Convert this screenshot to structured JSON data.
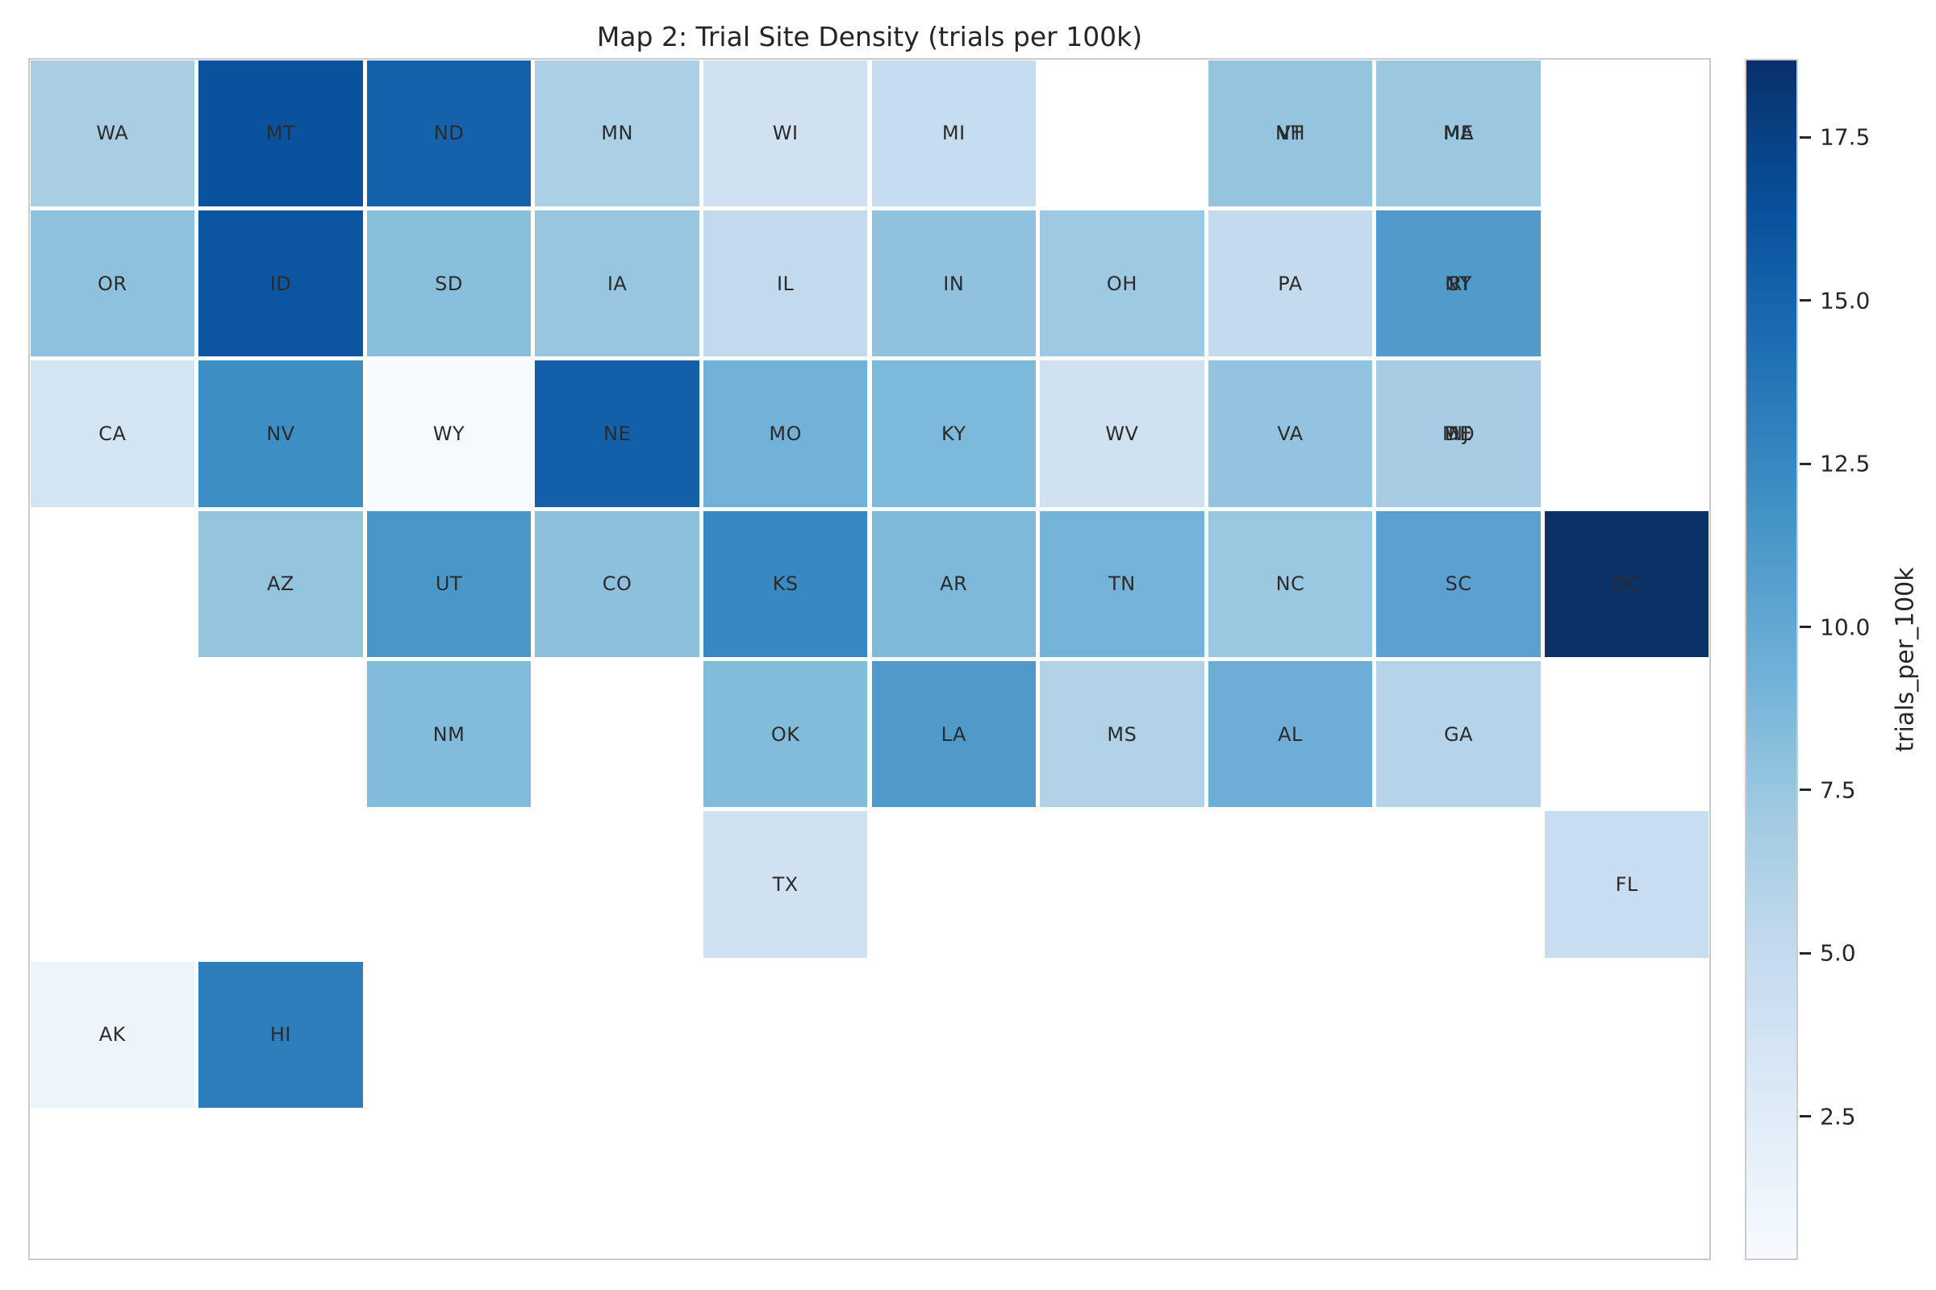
{
  "figure": {
    "background": "#ffffff",
    "text_color": "#262626",
    "axes_border_color": "#cbcbcb",
    "cell_label_color": "#2b2b2b"
  },
  "chart_data": {
    "type": "heatmap",
    "subtype": "us-state-tile-grid-map",
    "title": "Map 2: Trial Site Density (trials per 100k)",
    "value_field": "trials_per_100k",
    "grid": {
      "rows": 8,
      "cols": 10
    },
    "cells": [
      {
        "labels": [
          "WA"
        ],
        "row": 1,
        "col": 1,
        "value": 6.5,
        "color": "#a9cee4"
      },
      {
        "labels": [
          "MT"
        ],
        "row": 1,
        "col": 2,
        "value": 16.3,
        "color": "#0b529e"
      },
      {
        "labels": [
          "ND"
        ],
        "row": 1,
        "col": 3,
        "value": 15.5,
        "color": "#1561ab"
      },
      {
        "labels": [
          "MN"
        ],
        "row": 1,
        "col": 4,
        "value": 6.4,
        "color": "#abcfe5"
      },
      {
        "labels": [
          "WI"
        ],
        "row": 1,
        "col": 5,
        "value": 3.6,
        "color": "#d0e2f2"
      },
      {
        "labels": [
          "MI"
        ],
        "row": 1,
        "col": 6,
        "value": 4.5,
        "color": "#c6ddef"
      },
      {
        "labels": [
          "NH",
          "VT"
        ],
        "row": 1,
        "col": 8,
        "value": 7.9,
        "color": "#95c4df"
      },
      {
        "labels": [
          "ME",
          "MA"
        ],
        "row": 1,
        "col": 9,
        "value": 7.5,
        "color": "#9cc7e1"
      },
      {
        "labels": [
          "OR"
        ],
        "row": 2,
        "col": 1,
        "value": 8.2,
        "color": "#8dc1dd"
      },
      {
        "labels": [
          "ID"
        ],
        "row": 2,
        "col": 2,
        "value": 16.1,
        "color": "#0c55a2"
      },
      {
        "labels": [
          "SD"
        ],
        "row": 2,
        "col": 3,
        "value": 8.4,
        "color": "#89bedd"
      },
      {
        "labels": [
          "IA"
        ],
        "row": 2,
        "col": 4,
        "value": 7.7,
        "color": "#98c6e0"
      },
      {
        "labels": [
          "IL"
        ],
        "row": 2,
        "col": 5,
        "value": 4.9,
        "color": "#c2daee"
      },
      {
        "labels": [
          "IN"
        ],
        "row": 2,
        "col": 6,
        "value": 8.0,
        "color": "#90c2de"
      },
      {
        "labels": [
          "OH"
        ],
        "row": 2,
        "col": 7,
        "value": 7.3,
        "color": "#9dc9e2"
      },
      {
        "labels": [
          "PA"
        ],
        "row": 2,
        "col": 8,
        "value": 4.7,
        "color": "#c4dbee"
      },
      {
        "labels": [
          "NY",
          "RI",
          "CT"
        ],
        "row": 2,
        "col": 9,
        "value": 10.9,
        "color": "#519bcc"
      },
      {
        "labels": [
          "CA"
        ],
        "row": 3,
        "col": 1,
        "value": 3.4,
        "color": "#d3e4f3"
      },
      {
        "labels": [
          "NV"
        ],
        "row": 3,
        "col": 2,
        "value": 12.0,
        "color": "#3d8ec4"
      },
      {
        "labels": [
          "WY"
        ],
        "row": 3,
        "col": 3,
        "value": 0.4,
        "color": "#f6fafe"
      },
      {
        "labels": [
          "NE"
        ],
        "row": 3,
        "col": 4,
        "value": 15.4,
        "color": "#1460a8"
      },
      {
        "labels": [
          "MO"
        ],
        "row": 3,
        "col": 5,
        "value": 9.6,
        "color": "#72b2d8"
      },
      {
        "labels": [
          "KY"
        ],
        "row": 3,
        "col": 6,
        "value": 9.1,
        "color": "#7db9da"
      },
      {
        "labels": [
          "WV"
        ],
        "row": 3,
        "col": 7,
        "value": 3.6,
        "color": "#d0e1f2"
      },
      {
        "labels": [
          "VA"
        ],
        "row": 3,
        "col": 8,
        "value": 7.8,
        "color": "#93c3df"
      },
      {
        "labels": [
          "MD",
          "DE",
          "NJ"
        ],
        "row": 3,
        "col": 9,
        "value": 6.9,
        "color": "#a7cce3"
      },
      {
        "labels": [
          "AZ"
        ],
        "row": 4,
        "col": 2,
        "value": 7.9,
        "color": "#95c4df"
      },
      {
        "labels": [
          "UT"
        ],
        "row": 4,
        "col": 3,
        "value": 11.3,
        "color": "#4997c9"
      },
      {
        "labels": [
          "CO"
        ],
        "row": 4,
        "col": 4,
        "value": 8.2,
        "color": "#8cc0dd"
      },
      {
        "labels": [
          "KS"
        ],
        "row": 4,
        "col": 5,
        "value": 12.4,
        "color": "#3888c1"
      },
      {
        "labels": [
          "AR"
        ],
        "row": 4,
        "col": 6,
        "value": 8.9,
        "color": "#7eb9da"
      },
      {
        "labels": [
          "TN"
        ],
        "row": 4,
        "col": 7,
        "value": 9.5,
        "color": "#75b3d8"
      },
      {
        "labels": [
          "NC"
        ],
        "row": 4,
        "col": 8,
        "value": 7.5,
        "color": "#9bc8e1"
      },
      {
        "labels": [
          "SC"
        ],
        "row": 4,
        "col": 9,
        "value": 10.5,
        "color": "#5ba0d0"
      },
      {
        "labels": [
          "DC"
        ],
        "row": 4,
        "col": 10,
        "value": 18.6,
        "color": "#0a3168"
      },
      {
        "labels": [
          "NM"
        ],
        "row": 5,
        "col": 3,
        "value": 8.7,
        "color": "#82bcdb"
      },
      {
        "labels": [
          "OK"
        ],
        "row": 5,
        "col": 5,
        "value": 8.6,
        "color": "#83bcdb"
      },
      {
        "labels": [
          "LA"
        ],
        "row": 5,
        "col": 6,
        "value": 11.1,
        "color": "#4f99cb"
      },
      {
        "labels": [
          "MS"
        ],
        "row": 5,
        "col": 7,
        "value": 6.0,
        "color": "#b2d2e8"
      },
      {
        "labels": [
          "AL"
        ],
        "row": 5,
        "col": 8,
        "value": 10.0,
        "color": "#6eaed6"
      },
      {
        "labels": [
          "GA"
        ],
        "row": 5,
        "col": 9,
        "value": 5.8,
        "color": "#b5d4e9"
      },
      {
        "labels": [
          "TX"
        ],
        "row": 6,
        "col": 5,
        "value": 3.6,
        "color": "#d0e1f2"
      },
      {
        "labels": [
          "FL"
        ],
        "row": 6,
        "col": 10,
        "value": 4.4,
        "color": "#c9ddf0"
      },
      {
        "labels": [
          "AK"
        ],
        "row": 7,
        "col": 1,
        "value": 1.5,
        "color": "#edf4fb"
      },
      {
        "labels": [
          "HI"
        ],
        "row": 7,
        "col": 2,
        "value": 13.1,
        "color": "#2e7ebc"
      }
    ],
    "colorbar": {
      "label": "trials_per_100k",
      "ticks": [
        17.5,
        15.0,
        12.5,
        10.0,
        7.5,
        5.0,
        2.5
      ],
      "tick_labels": [
        "17.5",
        "15.0",
        "12.5",
        "10.0",
        "7.5",
        "5.0",
        "2.5"
      ],
      "vmin": 0.3,
      "vmax": 18.7,
      "colormap": "Blues",
      "gradient_stops": [
        "#08306b",
        "#08519c",
        "#2171b5",
        "#4292c6",
        "#6baed6",
        "#9ecae1",
        "#c6dbef",
        "#deebf7",
        "#f7fbff"
      ],
      "position": "right"
    }
  }
}
